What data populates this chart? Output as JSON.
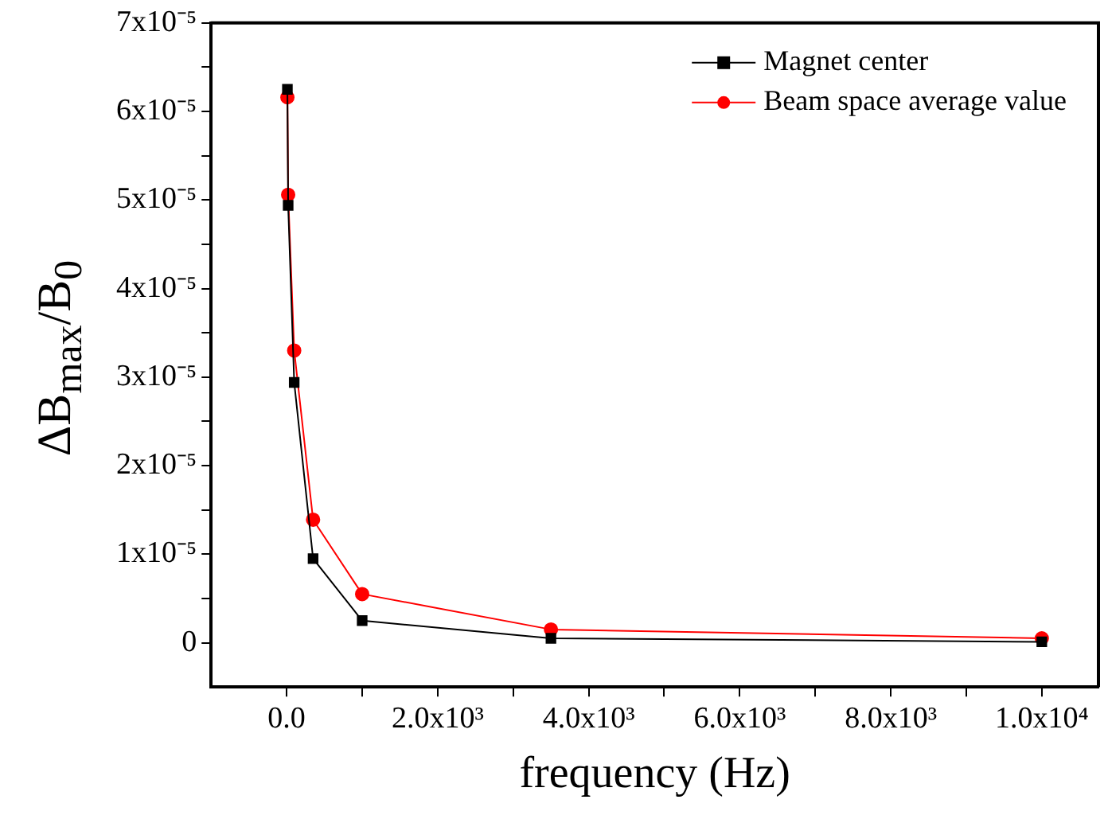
{
  "chart_data": {
    "type": "line",
    "xlabel": "frequency (Hz)",
    "ylabel": "ΔB$_{max}$/B$_{0}$",
    "x": [
      10,
      20,
      100,
      350,
      1000,
      3500,
      10000
    ],
    "series": [
      {
        "name": "Magnet center",
        "color": "#000000",
        "marker": "square",
        "values": [
          6.25e-05,
          4.94e-05,
          2.94e-05,
          9.5e-06,
          2.5e-06,
          5e-07,
          1e-07
        ]
      },
      {
        "name": "Beam space average value",
        "color": "#ff0000",
        "marker": "circle",
        "values": [
          6.16e-05,
          5.06e-05,
          3.3e-05,
          1.39e-05,
          5.5e-06,
          1.5e-06,
          5e-07
        ]
      }
    ],
    "xlim": [
      -1000,
      10750
    ],
    "ylim": [
      -5e-06,
      7e-05
    ],
    "xticks": [
      {
        "value": 0,
        "label": "0.0"
      },
      {
        "value": 1000,
        "label": null
      },
      {
        "value": 2000,
        "label": "2.0x10³"
      },
      {
        "value": 3000,
        "label": null
      },
      {
        "value": 4000,
        "label": "4.0x10³"
      },
      {
        "value": 5000,
        "label": null
      },
      {
        "value": 6000,
        "label": "6.0x10³"
      },
      {
        "value": 7000,
        "label": null
      },
      {
        "value": 8000,
        "label": "8.0x10³"
      },
      {
        "value": 9000,
        "label": null
      },
      {
        "value": 10000,
        "label": "1.0x10⁴"
      }
    ],
    "yticks": [
      0,
      {
        "value": 5e-06,
        "label": null
      },
      {
        "value": 1e-05,
        "label": "1x10⁻⁵"
      },
      {
        "value": 1.5e-05,
        "label": null
      },
      {
        "value": 2e-05,
        "label": "2x10⁻⁵"
      },
      {
        "value": 2.5e-05,
        "label": null
      },
      {
        "value": 3e-05,
        "label": "3x10⁻⁵"
      },
      {
        "value": 3.5e-05,
        "label": null
      },
      {
        "value": 4e-05,
        "label": "4x10⁻⁵"
      },
      {
        "value": 4.5e-05,
        "label": null
      },
      {
        "value": 5e-05,
        "label": "5x10⁻⁵"
      },
      {
        "value": 5.5e-05,
        "label": null
      },
      {
        "value": 6e-05,
        "label": "6x10⁻⁵"
      },
      {
        "value": 6.5e-05,
        "label": null
      },
      {
        "value": 7e-05,
        "label": "7x10⁻⁵"
      }
    ],
    "legend": "top right"
  }
}
